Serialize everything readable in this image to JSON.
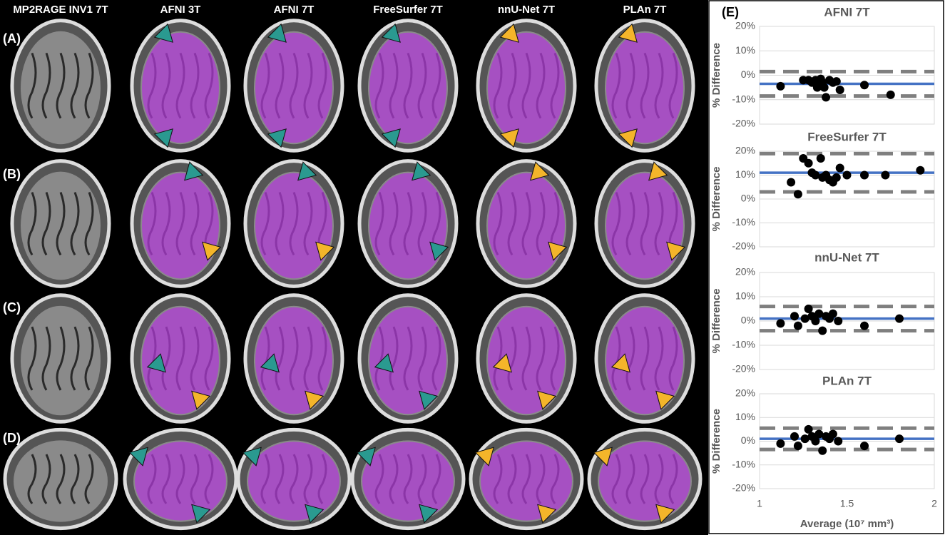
{
  "figure": {
    "columns": [
      "MP2RAGE INV1 7T",
      "AFNI 3T",
      "AFNI 7T",
      "FreeSurfer 7T",
      "nnU-Net 7T",
      "PLAn 7T"
    ],
    "rows": [
      "(A)",
      "(B)",
      "(C)",
      "(D)"
    ],
    "panel_label": "(E)"
  },
  "chart_data": [
    {
      "type": "scatter",
      "title": "AFNI 7T",
      "ylabel": "% Difference",
      "color": "#000000",
      "x": [
        1.12,
        1.25,
        1.28,
        1.3,
        1.32,
        1.33,
        1.35,
        1.36,
        1.37,
        1.38,
        1.4,
        1.42,
        1.44,
        1.46,
        1.6,
        1.75
      ],
      "values": [
        -4.5,
        -2,
        -2,
        -3,
        -2,
        -5,
        -1.5,
        -3,
        -5,
        -9,
        -2,
        -3,
        -2.5,
        -6,
        -4,
        -8
      ],
      "mean": -3.5,
      "mean_color": "#4472c4",
      "limits": [
        1.5,
        -8.5
      ],
      "limits_color": "#7f7f7f",
      "xlim": [
        1,
        2
      ],
      "ylim": [
        -20,
        20
      ],
      "yticks": [
        {
          "value": -20,
          "label": "-20%"
        },
        {
          "value": -10,
          "label": "-10%"
        },
        {
          "value": 0,
          "label": "0%"
        },
        {
          "value": 10,
          "label": "10%"
        },
        {
          "value": 20,
          "label": "20%"
        }
      ],
      "grid": true
    },
    {
      "type": "scatter",
      "title": "FreeSurfer 7T",
      "ylabel": "% Difference",
      "color": "#000000",
      "x": [
        1.18,
        1.22,
        1.25,
        1.28,
        1.3,
        1.32,
        1.35,
        1.36,
        1.38,
        1.4,
        1.42,
        1.44,
        1.46,
        1.5,
        1.6,
        1.72,
        1.92
      ],
      "values": [
        7,
        2,
        17,
        15,
        11,
        10,
        17,
        9,
        10,
        8,
        7,
        9,
        13,
        10,
        10,
        10,
        12
      ],
      "mean": 11,
      "mean_color": "#4472c4",
      "limits": [
        19,
        3
      ],
      "limits_color": "#7f7f7f",
      "xlim": [
        1,
        2
      ],
      "ylim": [
        -20,
        20
      ],
      "yticks": [
        {
          "value": -20,
          "label": "-20%"
        },
        {
          "value": -10,
          "label": "-10%"
        },
        {
          "value": 0,
          "label": "0%"
        },
        {
          "value": 10,
          "label": "10%"
        },
        {
          "value": 20,
          "label": "20%"
        }
      ],
      "grid": true
    },
    {
      "type": "scatter",
      "title": "nnU-Net 7T",
      "ylabel": "% Difference",
      "color": "#000000",
      "x": [
        1.12,
        1.2,
        1.22,
        1.26,
        1.28,
        1.3,
        1.32,
        1.34,
        1.36,
        1.38,
        1.4,
        1.42,
        1.45,
        1.6,
        1.8
      ],
      "values": [
        -1,
        2,
        -2,
        1,
        5,
        2,
        0,
        3,
        -4,
        2,
        1,
        3,
        0,
        -2,
        1
      ],
      "mean": 1,
      "mean_color": "#4472c4",
      "limits": [
        6,
        -4
      ],
      "limits_color": "#7f7f7f",
      "xlim": [
        1,
        2
      ],
      "ylim": [
        -20,
        20
      ],
      "yticks": [
        {
          "value": -20,
          "label": "-20%"
        },
        {
          "value": -10,
          "label": "-10%"
        },
        {
          "value": 0,
          "label": "0%"
        },
        {
          "value": 10,
          "label": "10%"
        },
        {
          "value": 20,
          "label": "20%"
        }
      ],
      "grid": true
    },
    {
      "type": "scatter",
      "title": "PLAn 7T",
      "ylabel": "% Difference",
      "color": "#000000",
      "x": [
        1.12,
        1.2,
        1.22,
        1.26,
        1.28,
        1.3,
        1.32,
        1.34,
        1.36,
        1.38,
        1.4,
        1.42,
        1.45,
        1.6,
        1.8
      ],
      "values": [
        -1,
        2,
        -2,
        1,
        5,
        2,
        0,
        3,
        -4,
        2,
        1,
        3,
        0,
        -2,
        1
      ],
      "mean": 1,
      "mean_color": "#4472c4",
      "limits": [
        5.5,
        -3.5
      ],
      "limits_color": "#7f7f7f",
      "xlim": [
        1,
        2
      ],
      "ylim": [
        -20,
        20
      ],
      "yticks": [
        {
          "value": -20,
          "label": "-20%"
        },
        {
          "value": -10,
          "label": "-10%"
        },
        {
          "value": 0,
          "label": "0%"
        },
        {
          "value": 10,
          "label": "10%"
        },
        {
          "value": 20,
          "label": "20%"
        }
      ],
      "xticks": [
        1,
        1.5,
        2
      ],
      "xlabel": "Average (10⁷ mm³)",
      "grid": true
    }
  ]
}
